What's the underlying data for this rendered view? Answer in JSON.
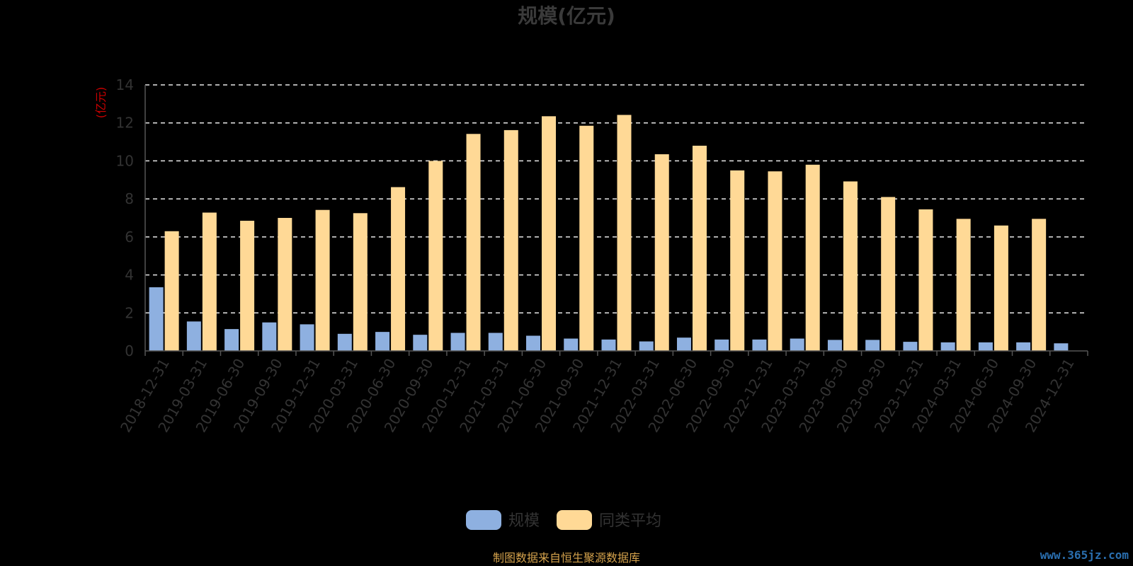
{
  "chart_data": {
    "type": "bar",
    "title": "规模(亿元)",
    "ylabel": "(亿元)",
    "xlabel": "",
    "ylim": [
      0,
      14
    ],
    "yticks": [
      "0",
      "2",
      "4",
      "6",
      "8",
      "10",
      "12",
      "14"
    ],
    "grid": true,
    "legend_position": "bottom",
    "categories": [
      "2018-12-31",
      "2019-03-31",
      "2019-06-30",
      "2019-09-30",
      "2019-12-31",
      "2020-03-31",
      "2020-06-30",
      "2020-09-30",
      "2020-12-31",
      "2021-03-31",
      "2021-06-30",
      "2021-09-30",
      "2021-12-31",
      "2022-03-31",
      "2022-06-30",
      "2022-09-30",
      "2022-12-31",
      "2023-03-31",
      "2023-06-30",
      "2023-09-30",
      "2023-12-31",
      "2024-03-31",
      "2024-06-30",
      "2024-09-30",
      "2024-12-31"
    ],
    "series": [
      {
        "name": "规模",
        "color": "#8eb0e0",
        "values": [
          3.35,
          1.55,
          1.15,
          1.5,
          1.4,
          0.9,
          1.0,
          0.85,
          0.95,
          0.95,
          0.8,
          0.65,
          0.6,
          0.5,
          0.7,
          0.6,
          0.6,
          0.65,
          0.58,
          0.58,
          0.48,
          0.45,
          0.45,
          0.45,
          0.4
        ]
      },
      {
        "name": "同类平均",
        "color": "#ffd996",
        "values": [
          6.3,
          7.28,
          6.85,
          7.0,
          7.42,
          7.25,
          8.62,
          10.0,
          11.42,
          11.62,
          12.35,
          11.85,
          12.42,
          10.35,
          10.8,
          9.5,
          9.45,
          9.8,
          8.92,
          8.1,
          7.45,
          6.95,
          6.6,
          6.95,
          null
        ]
      }
    ]
  },
  "footer": {
    "source": "制图数据来自恒生聚源数据库",
    "watermark": "www.365jz.com"
  }
}
